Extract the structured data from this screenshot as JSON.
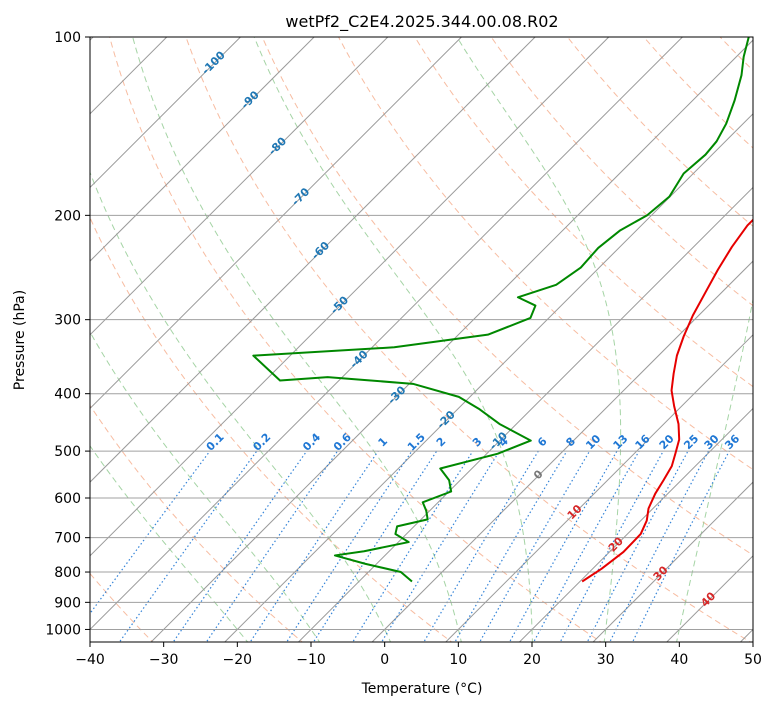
{
  "chart_data": {
    "type": "line",
    "title": "wetPf2_C2E4.2025.344.00.08.R02",
    "xlabel": "Temperature (°C)",
    "ylabel": "Pressure (hPa)",
    "xlim": [
      -40,
      50
    ],
    "ylim": [
      1050,
      100
    ],
    "x_ticks": [
      "−40",
      "−30",
      "−20",
      "−10",
      "0",
      "10",
      "20",
      "30",
      "40",
      "50"
    ],
    "y_ticks": [
      "100",
      "200",
      "300",
      "400",
      "500",
      "600",
      "700",
      "800",
      "900",
      "1000"
    ],
    "y_tick_values": [
      100,
      200,
      300,
      400,
      500,
      600,
      700,
      800,
      900,
      1000
    ],
    "series": [
      {
        "name": "temperature",
        "color": "#e60000",
        "points": [
          [
            20.3,
            830
          ],
          [
            21.2,
            790
          ],
          [
            21.9,
            740
          ],
          [
            21.8,
            690
          ],
          [
            20.8,
            655
          ],
          [
            19.4,
            625
          ],
          [
            18.3,
            590
          ],
          [
            17.6,
            560
          ],
          [
            16.8,
            530
          ],
          [
            15.6,
            505
          ],
          [
            14.2,
            478
          ],
          [
            12.0,
            450
          ],
          [
            9.0,
            420
          ],
          [
            6.5,
            395
          ],
          [
            4.5,
            370
          ],
          [
            2.5,
            345
          ],
          [
            0.8,
            320
          ],
          [
            -0.8,
            295
          ],
          [
            -2.2,
            270
          ],
          [
            -3.6,
            247
          ],
          [
            -4.8,
            226
          ],
          [
            -5.6,
            208
          ],
          [
            -5.6,
            198
          ],
          [
            -5.2,
            190
          ],
          [
            -4.2,
            180
          ],
          [
            -2.8,
            168
          ],
          [
            -1.7,
            157
          ],
          [
            -1.2,
            148
          ],
          [
            -1.2,
            140
          ],
          [
            -1.5,
            132
          ],
          [
            -1.7,
            124
          ],
          [
            -1.6,
            118
          ],
          [
            -1.2,
            112
          ],
          [
            -0.6,
            106
          ],
          [
            -0.2,
            100
          ]
        ]
      },
      {
        "name": "dewpoint",
        "color": "#008800",
        "points": [
          [
            -2.8,
            830
          ],
          [
            -5.6,
            800
          ],
          [
            -11.5,
            775
          ],
          [
            -16.8,
            750
          ],
          [
            -13.4,
            738
          ],
          [
            -8.6,
            712
          ],
          [
            -11.5,
            690
          ],
          [
            -12.3,
            670
          ],
          [
            -9.1,
            652
          ],
          [
            -10.5,
            630
          ],
          [
            -12.1,
            610
          ],
          [
            -9.7,
            585
          ],
          [
            -11.5,
            560
          ],
          [
            -14.3,
            535
          ],
          [
            -8.5,
            505
          ],
          [
            -5.8,
            480
          ],
          [
            -12.3,
            450
          ],
          [
            -17.0,
            425
          ],
          [
            -21.5,
            405
          ],
          [
            -29.5,
            385
          ],
          [
            -42.0,
            375
          ],
          [
            -48.0,
            380
          ],
          [
            -55.0,
            345
          ],
          [
            -37.0,
            334
          ],
          [
            -26.0,
            318
          ],
          [
            -22.5,
            298
          ],
          [
            -23.5,
            284
          ],
          [
            -27.0,
            275
          ],
          [
            -23.5,
            262
          ],
          [
            -22.5,
            245
          ],
          [
            -22.8,
            227
          ],
          [
            -22.2,
            212
          ],
          [
            -20.6,
            200
          ],
          [
            -20.1,
            186
          ],
          [
            -21.3,
            170
          ],
          [
            -20.9,
            158
          ],
          [
            -21.2,
            150
          ],
          [
            -22.3,
            140
          ],
          [
            -24.3,
            128
          ],
          [
            -26.8,
            116
          ],
          [
            -29.0,
            108
          ],
          [
            -31.0,
            100
          ]
        ]
      }
    ],
    "isotherms_c": [
      -150,
      -140,
      -130,
      -120,
      -110,
      -100,
      -90,
      -80,
      -70,
      -60,
      -50,
      -40,
      -30,
      -20,
      -10,
      0,
      10,
      20,
      30,
      40,
      50
    ],
    "isotherm_labels": [
      {
        "text": "-100",
        "t": -100,
        "p": 110
      },
      {
        "text": "-90",
        "t": -90,
        "p": 127
      },
      {
        "text": "-80",
        "t": -80,
        "p": 152
      },
      {
        "text": "-70",
        "t": -70,
        "p": 185
      },
      {
        "text": "-60",
        "t": -60,
        "p": 228
      },
      {
        "text": "-50",
        "t": -50,
        "p": 282
      },
      {
        "text": "-40",
        "t": -40,
        "p": 348
      },
      {
        "text": "-30",
        "t": -30,
        "p": 400
      },
      {
        "text": "-20",
        "t": -20,
        "p": 440
      },
      {
        "text": "-10",
        "t": -10,
        "p": 478
      }
    ],
    "isotherm_warm_labels": [
      {
        "text": "0",
        "t": 0,
        "p": 545,
        "color": "#777777"
      },
      {
        "text": "10",
        "t": 10,
        "p": 630,
        "color": "#d62728"
      },
      {
        "text": "20",
        "t": 20,
        "p": 715,
        "color": "#d62728"
      },
      {
        "text": "30",
        "t": 30,
        "p": 800,
        "color": "#d62728"
      },
      {
        "text": "40",
        "t": 40,
        "p": 885,
        "color": "#d62728"
      }
    ],
    "dry_adiabats_theta_k": [
      200,
      220,
      240,
      260,
      280,
      300,
      320,
      340,
      360,
      380,
      400,
      420,
      440,
      460,
      480,
      500,
      520,
      540,
      560,
      580,
      600,
      620,
      640,
      660
    ],
    "moist_adiabats_tw_c": [
      -20,
      -10,
      0,
      10,
      20,
      30,
      40
    ],
    "mixing_ratios_gkg": [
      0.1,
      0.2,
      0.4,
      0.6,
      1,
      1.5,
      2,
      3,
      4,
      6,
      8,
      10,
      13,
      16,
      20,
      25,
      30,
      36
    ],
    "mixing_ratio_labels": [
      "0.1",
      "0.2",
      "0.4",
      "0.6",
      "1",
      "1.5",
      "2",
      "3",
      "4",
      "6",
      "8",
      "10",
      "13",
      "16",
      "20",
      "25",
      "30",
      "36"
    ],
    "mixing_ratio_label_p": 480
  },
  "colors": {
    "isotherm": "#9a9a9a",
    "dry_adiabat": "#f4a582",
    "moist_adiabat": "#8fc98f",
    "mixing_ratio": "#1f77d4",
    "isotherm_label": "#1f77b4",
    "frame": "#000000"
  }
}
